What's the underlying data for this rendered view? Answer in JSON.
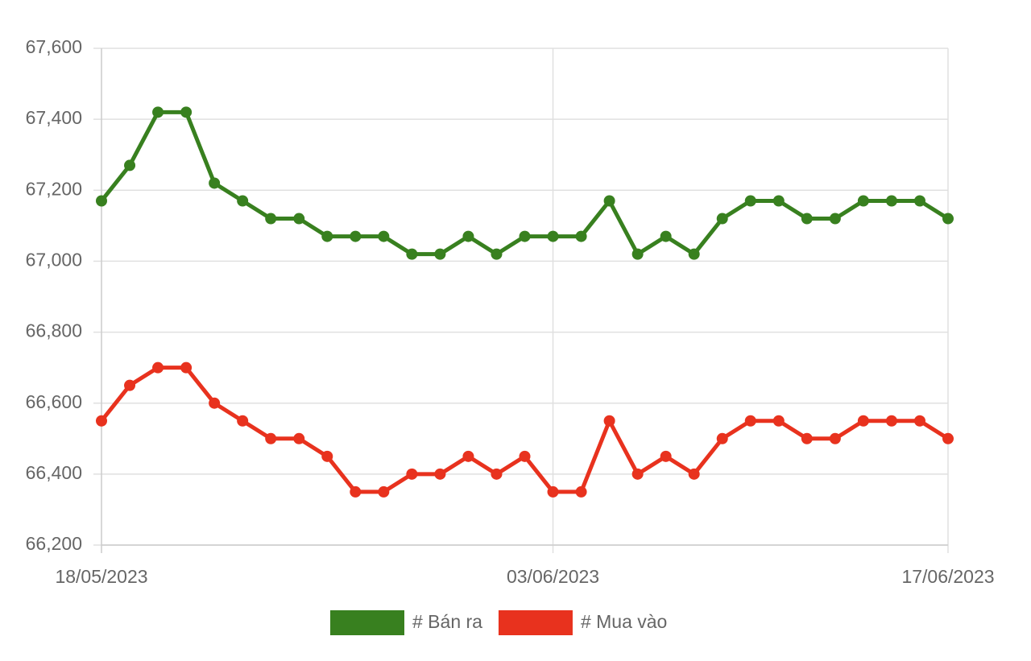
{
  "chart_data": {
    "type": "line",
    "categories": [
      "18/05/2023",
      null,
      null,
      null,
      null,
      null,
      null,
      null,
      null,
      null,
      null,
      null,
      null,
      null,
      null,
      null,
      "03/06/2023",
      null,
      null,
      null,
      null,
      null,
      null,
      null,
      null,
      null,
      null,
      null,
      null,
      null,
      "17/06/2023"
    ],
    "series": [
      {
        "name": "# Bán ra",
        "color": "#38801f",
        "values": [
          67170,
          67270,
          67420,
          67420,
          67220,
          67170,
          67120,
          67120,
          67070,
          67070,
          67070,
          67020,
          67020,
          67070,
          67020,
          67070,
          67070,
          67070,
          67170,
          67020,
          67070,
          67020,
          67120,
          67170,
          67170,
          67120,
          67120,
          67170,
          67170,
          67170,
          67120
        ]
      },
      {
        "name": "# Mua vào",
        "color": "#e8321e",
        "values": [
          66550,
          66650,
          66700,
          66700,
          66600,
          66550,
          66500,
          66500,
          66450,
          66350,
          66350,
          66400,
          66400,
          66450,
          66400,
          66450,
          66350,
          66350,
          66550,
          66400,
          66450,
          66400,
          66500,
          66550,
          66550,
          66500,
          66500,
          66550,
          66550,
          66550,
          66500
        ]
      }
    ],
    "ylim": [
      66200,
      67600
    ],
    "yticks": [
      {
        "value": 66200,
        "label": "66,200"
      },
      {
        "value": 66400,
        "label": "66,400"
      },
      {
        "value": 66600,
        "label": "66,600"
      },
      {
        "value": 66800,
        "label": "66,800"
      },
      {
        "value": 67000,
        "label": "67,000"
      },
      {
        "value": 67200,
        "label": "67,200"
      },
      {
        "value": 67400,
        "label": "67,400"
      },
      {
        "value": 67600,
        "label": "67,600"
      }
    ],
    "grid": true,
    "legend": "bottom"
  }
}
